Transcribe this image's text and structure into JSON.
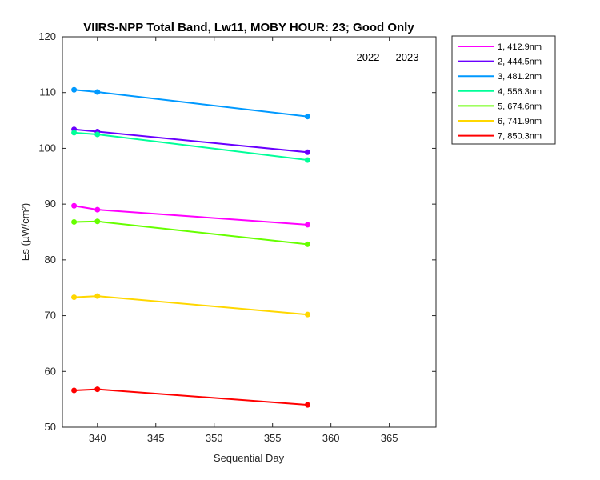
{
  "chart_data": {
    "type": "line",
    "title": "VIIRS-NPP Total Band,  Lw11, MOBY HOUR: 23;  Good Only",
    "xlabel": "Sequential Day",
    "ylabel": "Es (µW/cm²)",
    "xlim": [
      337,
      369
    ],
    "ylim": [
      50,
      120
    ],
    "xticks": [
      340,
      345,
      350,
      355,
      360,
      365
    ],
    "yticks": [
      50,
      60,
      70,
      80,
      90,
      100,
      110,
      120
    ],
    "grid": false,
    "legend_position": "outside-top-right",
    "x": [
      338,
      340,
      358
    ],
    "series": [
      {
        "name": "1, 412.9nm",
        "color": "#ff00ff",
        "values": [
          89.7,
          89.0,
          86.3
        ]
      },
      {
        "name": "2, 444.5nm",
        "color": "#6a00ff",
        "values": [
          103.4,
          103.0,
          99.3
        ]
      },
      {
        "name": "3, 481.2nm",
        "color": "#0099ff",
        "values": [
          110.5,
          110.1,
          105.7
        ]
      },
      {
        "name": "4, 556.3nm",
        "color": "#00ff99",
        "values": [
          102.8,
          102.5,
          97.9
        ]
      },
      {
        "name": "5, 674.6nm",
        "color": "#66ff00",
        "values": [
          86.8,
          86.9,
          82.8
        ]
      },
      {
        "name": "6, 741.9nm",
        "color": "#ffd700",
        "values": [
          73.3,
          73.5,
          70.2
        ]
      },
      {
        "name": "7, 850.3nm",
        "color": "#ff0000",
        "values": [
          56.6,
          56.8,
          54.0
        ]
      }
    ],
    "annotations": [
      "2022",
      "2023"
    ]
  }
}
